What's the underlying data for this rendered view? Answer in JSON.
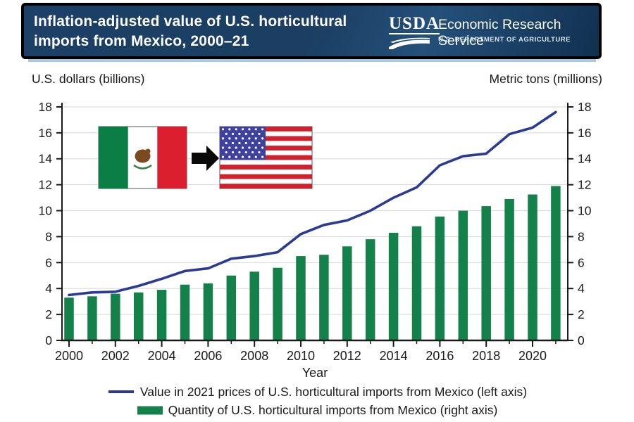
{
  "header": {
    "title_line1": "Inflation-adjusted value of U.S. horticultural",
    "title_line2": "imports from Mexico, 2000–21",
    "logo": {
      "usda_text": "USDA",
      "agency": "Economic Research Service",
      "department": "U.S. DEPARTMENT OF AGRICULTURE"
    },
    "colors": {
      "background": "#1b3e62",
      "background_highlight": "#24507a",
      "background_dark": "#11304f",
      "border": "#000000",
      "bottom_strip": "#a9cadf",
      "text": "#ffffff"
    }
  },
  "axis_units": {
    "left": "U.S. dollars (billions)",
    "right": "Metric tons (millions)"
  },
  "chart_data": {
    "type": "bar+line",
    "title": "Inflation-adjusted value of U.S. horticultural imports from Mexico, 2000–21",
    "xlabel": "Year",
    "left_axis_label": "U.S. dollars (billions)",
    "right_axis_label": "Metric tons (millions)",
    "left_ylim": [
      0,
      18
    ],
    "right_ylim": [
      0,
      18
    ],
    "ytick_step": 2,
    "xtick_label_every": 2,
    "grid": true,
    "grid_color": "#d8d8d8",
    "axis_color": "#1a1a1a",
    "legend_position": "bottom",
    "categories": [
      "2000",
      "2001",
      "2002",
      "2003",
      "2004",
      "2005",
      "2006",
      "2007",
      "2008",
      "2009",
      "2010",
      "2011",
      "2012",
      "2013",
      "2014",
      "2015",
      "2016",
      "2017",
      "2018",
      "2019",
      "2020",
      "2021"
    ],
    "series": [
      {
        "name": "Value in 2021 prices of U.S. horticultural imports from Mexico (left axis)",
        "type": "line",
        "axis": "left",
        "color": "#2b3b94",
        "values": [
          3.5,
          3.7,
          3.75,
          4.2,
          4.75,
          5.35,
          5.55,
          6.3,
          6.5,
          6.8,
          8.2,
          8.9,
          9.25,
          10.0,
          11.0,
          11.8,
          13.5,
          14.2,
          14.4,
          15.9,
          16.4,
          17.6
        ]
      },
      {
        "name": "Quantity of U.S. horticultural imports from Mexico (right axis)",
        "type": "bar",
        "axis": "right",
        "color": "#14814b",
        "values": [
          3.3,
          3.4,
          3.6,
          3.7,
          3.9,
          4.3,
          4.4,
          5.0,
          5.3,
          5.6,
          6.5,
          6.6,
          7.25,
          7.8,
          8.3,
          8.8,
          9.55,
          10.0,
          10.35,
          10.9,
          11.25,
          11.9
        ]
      }
    ]
  },
  "flags": {
    "mexico": {
      "green": "#0b7e45",
      "white": "#ffffff",
      "red": "#db1f2e",
      "eagle_brown": "#7a4a21",
      "wreath_green": "#2e7d43",
      "border": "#8e8e8e"
    },
    "us": {
      "red": "#d0202c",
      "white": "#ffffff",
      "canton_blue": "#3f41a0",
      "border": "#8e8e8e"
    },
    "arrow_color": "#0a0a0a"
  }
}
